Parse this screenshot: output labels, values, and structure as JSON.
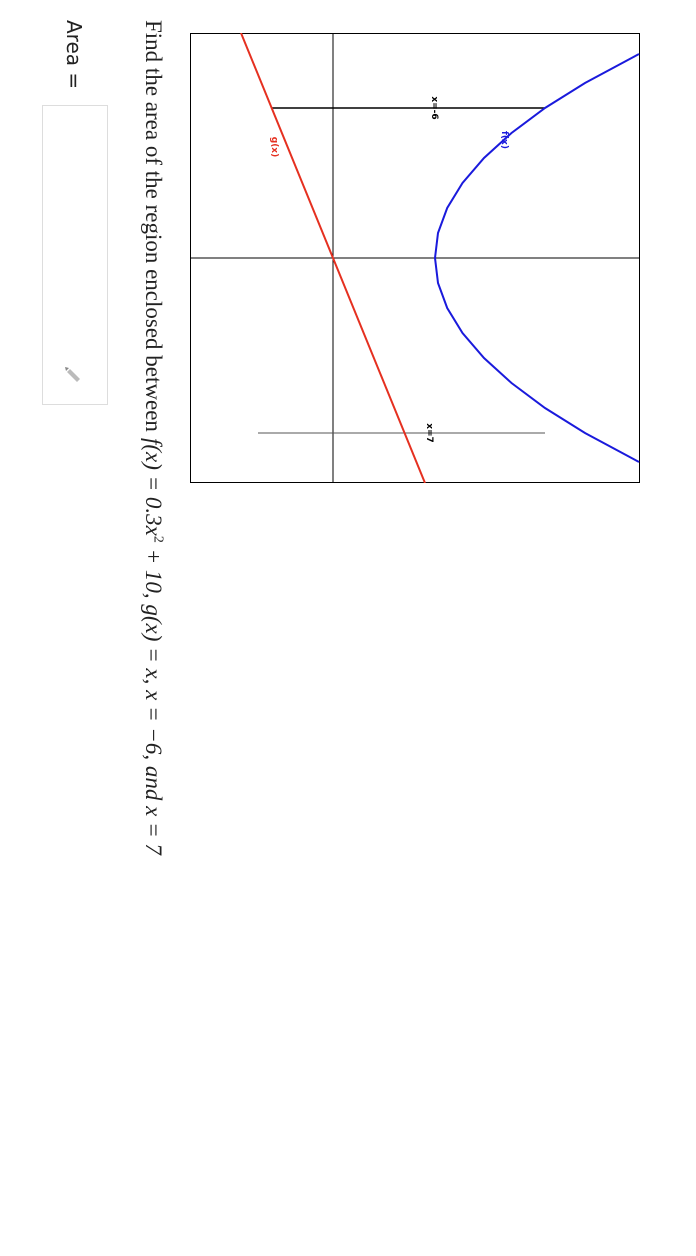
{
  "graph": {
    "f_label": "f(x)",
    "g_label": "g(x)",
    "left_label": "x=-6",
    "right_label": "x=7"
  },
  "question": {
    "text": "Find the area of the region enclosed between",
    "f": "f(x) = 0.3x",
    "exp": "2",
    "rest": "+ 10, g(x) = x, x = −6, and x = 7"
  },
  "answer": {
    "label": "Area ="
  }
}
